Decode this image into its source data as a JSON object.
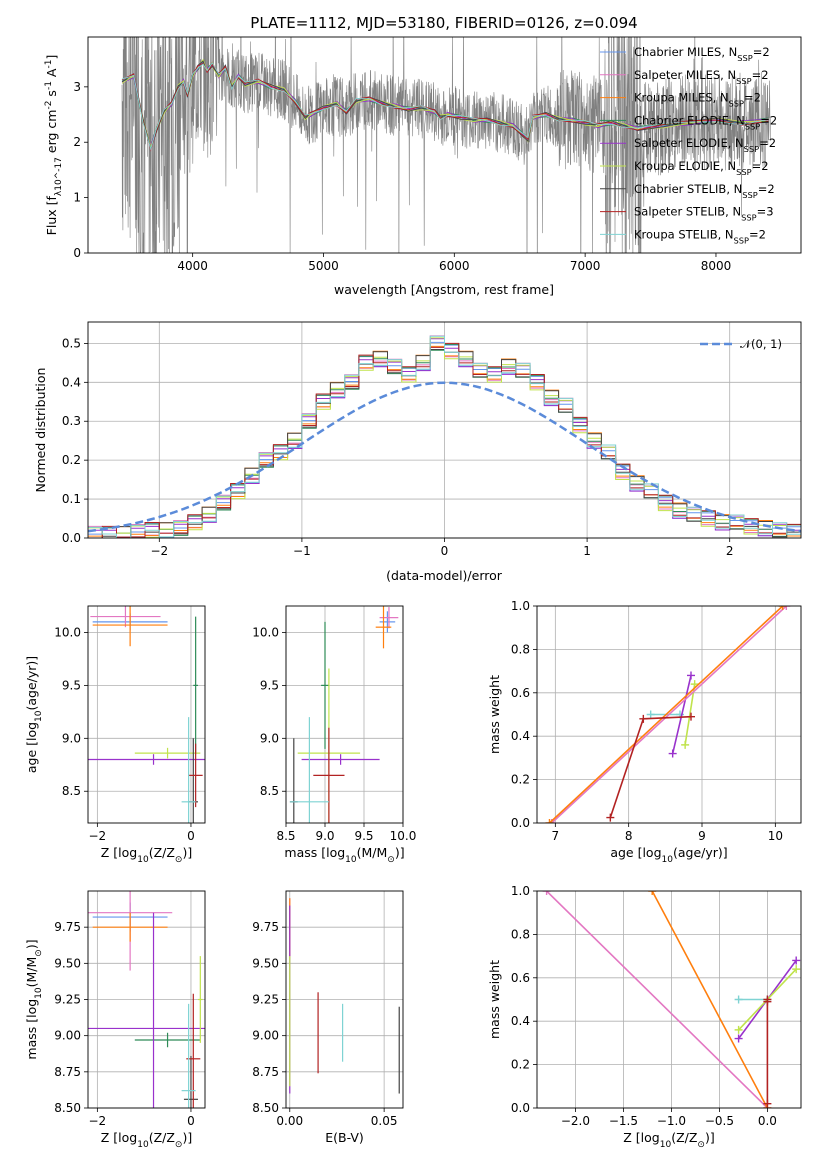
{
  "chart_data": [
    {
      "type": "line",
      "title": "PLATE=1112, MJD=53180, FIBERID=0126, z=0.094",
      "xlabel": "wavelength [Angstrom, rest frame]",
      "ylabel": "Flux [f_λ 10^-17 erg cm^-2 s^-1 A^-1]",
      "xlim": [
        3200,
        8650
      ],
      "ylim": [
        0,
        3.9
      ],
      "xticks": [
        4000,
        5000,
        6000,
        7000,
        8000
      ],
      "yticks": [
        0,
        1,
        2,
        3
      ],
      "grid": false,
      "legend_position": "right",
      "data_color": "#808080",
      "series": [
        {
          "name": "Chabrier MILES, N_SSP=2",
          "color": "#6495ed"
        },
        {
          "name": "Salpeter MILES, N_SSP=2",
          "color": "#e377c2"
        },
        {
          "name": "Kroupa MILES, N_SSP=2",
          "color": "#ff7f0e"
        },
        {
          "name": "Chabrier ELODIE, N_SSP=2",
          "color": "#2e8b57"
        },
        {
          "name": "Salpeter ELODIE, N_SSP=2",
          "color": "#9932cc"
        },
        {
          "name": "Kroupa ELODIE, N_SSP=2",
          "color": "#c0e34c"
        },
        {
          "name": "Chabrier STELIB, N_SSP=2",
          "color": "#444444"
        },
        {
          "name": "Salpeter STELIB, N_SSP=3",
          "color": "#b22222"
        },
        {
          "name": "Kroupa STELIB, N_SSP=2",
          "color": "#7fd3d3"
        }
      ],
      "model_x": [
        3460,
        3550,
        3620,
        3680,
        3720,
        3780,
        3840,
        3890,
        3930,
        3960,
        4000,
        4040,
        4080,
        4110,
        4150,
        4200,
        4250,
        4300,
        4350,
        4400,
        4500,
        4600,
        4700,
        4780,
        4861,
        4900,
        5000,
        5100,
        5175,
        5250,
        5350,
        5450,
        5550,
        5650,
        5750,
        5850,
        5893,
        5950,
        6050,
        6150,
        6250,
        6350,
        6450,
        6563,
        6600,
        6700,
        6800,
        6900,
        7000,
        7100,
        7200,
        7300,
        7400,
        7600,
        7800,
        8000,
        8200,
        8400
      ],
      "model_y": [
        3.1,
        3.2,
        2.4,
        1.9,
        2.2,
        2.55,
        2.7,
        3.0,
        3.1,
        2.85,
        3.2,
        3.35,
        3.45,
        3.3,
        3.4,
        3.2,
        3.35,
        3.0,
        3.2,
        3.05,
        3.1,
        3.0,
        2.95,
        2.75,
        2.45,
        2.5,
        2.62,
        2.7,
        2.55,
        2.75,
        2.78,
        2.7,
        2.65,
        2.6,
        2.62,
        2.55,
        2.45,
        2.5,
        2.45,
        2.4,
        2.4,
        2.35,
        2.3,
        2.05,
        2.45,
        2.5,
        2.42,
        2.4,
        2.35,
        2.3,
        2.35,
        2.3,
        2.25,
        2.3,
        2.35,
        2.4,
        2.35,
        2.4
      ]
    },
    {
      "type": "line",
      "xlabel": "(data-model)/error",
      "ylabel": "Normed distribution",
      "xlim": [
        -2.5,
        2.5
      ],
      "ylim": [
        0,
        0.555
      ],
      "xticks": [
        -2,
        -1,
        0,
        1,
        2
      ],
      "yticks": [
        0.0,
        0.1,
        0.2,
        0.3,
        0.4,
        0.5
      ],
      "grid": true,
      "legend": [
        "𝒩(0, 1)"
      ],
      "legend_position": "top-right",
      "bin_width": 0.1,
      "histogram_centers": [
        -2.45,
        -2.35,
        -2.25,
        -2.15,
        -2.05,
        -1.95,
        -1.85,
        -1.75,
        -1.65,
        -1.55,
        -1.45,
        -1.35,
        -1.25,
        -1.15,
        -1.05,
        -0.95,
        -0.85,
        -0.75,
        -0.65,
        -0.55,
        -0.45,
        -0.35,
        -0.25,
        -0.15,
        -0.05,
        0.05,
        0.15,
        0.25,
        0.35,
        0.45,
        0.55,
        0.65,
        0.75,
        0.85,
        0.95,
        1.05,
        1.15,
        1.25,
        1.35,
        1.45,
        1.55,
        1.65,
        1.75,
        1.85,
        1.95,
        2.05,
        2.15,
        2.25,
        2.35,
        2.45
      ],
      "histogram_values": [
        0.01,
        0.01,
        0.01,
        0.015,
        0.02,
        0.02,
        0.025,
        0.04,
        0.06,
        0.09,
        0.12,
        0.16,
        0.2,
        0.22,
        0.25,
        0.3,
        0.35,
        0.38,
        0.4,
        0.45,
        0.46,
        0.44,
        0.42,
        0.45,
        0.5,
        0.48,
        0.46,
        0.43,
        0.42,
        0.44,
        0.43,
        0.4,
        0.36,
        0.34,
        0.29,
        0.25,
        0.22,
        0.17,
        0.14,
        0.12,
        0.09,
        0.07,
        0.06,
        0.05,
        0.04,
        0.04,
        0.03,
        0.025,
        0.02,
        0.015
      ],
      "normal_curve": {
        "mean": 0,
        "sd": 1,
        "color": "#5b8bd9",
        "style": "dashed"
      }
    },
    {
      "type": "scatter",
      "xlabel": "Z [log10(Z/Z⊙)]",
      "ylabel": "age [log10(age/yr)]",
      "xlim": [
        -2.2,
        0.3
      ],
      "ylim": [
        8.2,
        10.25
      ],
      "xticks": [
        -2,
        0
      ],
      "yticks": [
        8.5,
        9.0,
        9.5,
        10.0
      ],
      "grid": true,
      "errorbar_points": [
        {
          "x": -1.3,
          "y": 10.1,
          "xerr": 0.8,
          "yerr": 0.08,
          "color": "#6495ed"
        },
        {
          "x": -1.4,
          "y": 10.15,
          "xerr": 0.75,
          "yerr": 0.1,
          "color": "#e377c2"
        },
        {
          "x": -1.3,
          "y": 10.07,
          "xerr": 0.8,
          "yerr": 0.2,
          "color": "#ff7f0e"
        },
        {
          "x": 0.1,
          "y": 9.5,
          "xerr": 0.05,
          "yerr": 0.65,
          "color": "#2e8b57"
        },
        {
          "x": -0.8,
          "y": 8.8,
          "xerr": 1.4,
          "yerr": 0.05,
          "color": "#9932cc"
        },
        {
          "x": -0.5,
          "y": 8.86,
          "xerr": 0.7,
          "yerr": 0.05,
          "color": "#c0e34c"
        },
        {
          "x": 0.05,
          "y": 8.4,
          "xerr": 0.1,
          "yerr": 0.6,
          "color": "#444444"
        },
        {
          "x": 0.1,
          "y": 8.65,
          "xerr": 0.15,
          "yerr": 0.3,
          "color": "#b22222"
        },
        {
          "x": -0.05,
          "y": 8.4,
          "xerr": 0.15,
          "yerr": 0.8,
          "color": "#7fd3d3"
        }
      ]
    },
    {
      "type": "scatter",
      "xlabel": "mass [log10(M/M⊙)]",
      "xlim": [
        8.5,
        10.0
      ],
      "ylim": [
        8.2,
        10.25
      ],
      "xticks": [
        8.5,
        9.0,
        9.5,
        10.0
      ],
      "yticks": [
        8.5,
        9.0,
        9.5,
        10.0
      ],
      "grid": true,
      "errorbar_points": [
        {
          "x": 9.8,
          "y": 10.1,
          "xerr": 0.1,
          "yerr": 0.1,
          "color": "#6495ed"
        },
        {
          "x": 9.82,
          "y": 10.14,
          "xerr": 0.12,
          "yerr": 0.1,
          "color": "#e377c2"
        },
        {
          "x": 9.75,
          "y": 10.05,
          "xerr": 0.1,
          "yerr": 0.2,
          "color": "#ff7f0e"
        },
        {
          "x": 9.0,
          "y": 9.5,
          "xerr": 0.05,
          "yerr": 0.6,
          "color": "#2e8b57"
        },
        {
          "x": 9.2,
          "y": 8.8,
          "xerr": 0.5,
          "yerr": 0.05,
          "color": "#9932cc"
        },
        {
          "x": 9.05,
          "y": 8.86,
          "xerr": 0.4,
          "yerr": 0.8,
          "color": "#c0e34c"
        },
        {
          "x": 8.6,
          "y": 8.4,
          "xerr": 0.05,
          "yerr": 0.6,
          "color": "#444444"
        },
        {
          "x": 9.05,
          "y": 8.65,
          "xerr": 0.2,
          "yerr": 0.45,
          "color": "#b22222"
        },
        {
          "x": 8.8,
          "y": 8.4,
          "xerr": 0.25,
          "yerr": 0.8,
          "color": "#7fd3d3"
        }
      ]
    },
    {
      "type": "line",
      "xlabel": "age [log10(age/yr)]",
      "ylabel": "mass weight",
      "xlim": [
        6.75,
        10.35
      ],
      "ylim": [
        0,
        1
      ],
      "xticks": [
        7,
        8,
        9,
        10
      ],
      "yticks": [
        0.0,
        0.2,
        0.4,
        0.6,
        0.8,
        1.0
      ],
      "grid": true,
      "series": [
        {
          "name": "Kroupa STELIB, N_SSP=2",
          "color": "#7fd3d3",
          "x": [
            8.3,
            8.7
          ],
          "y": [
            0.5,
            0.5
          ]
        },
        {
          "name": "Salpeter ELODIE, N_SSP=2",
          "color": "#9932cc",
          "x": [
            8.6,
            8.85
          ],
          "y": [
            0.32,
            0.68
          ]
        },
        {
          "name": "Kroupa ELODIE, N_SSP=2",
          "color": "#c0e34c",
          "x": [
            8.77,
            8.9
          ],
          "y": [
            0.36,
            0.64
          ]
        },
        {
          "name": "Salpeter MILES, N_SSP=2",
          "color": "#e377c2",
          "x": [
            6.95,
            10.15
          ],
          "y": [
            0,
            1
          ]
        },
        {
          "name": "Kroupa MILES, N_SSP=2",
          "color": "#ff7f0e",
          "x": [
            6.92,
            10.1
          ],
          "y": [
            0,
            1
          ]
        },
        {
          "name": "Salpeter STELIB, N_SSP=3",
          "color": "#b22222",
          "x": [
            7.75,
            8.2,
            8.85
          ],
          "y": [
            0.025,
            0.48,
            0.49
          ]
        }
      ]
    },
    {
      "type": "scatter",
      "xlabel": "Z [log10(Z/Z⊙)]",
      "ylabel": "mass [log10(M/M⊙)]",
      "xlim": [
        -2.2,
        0.3
      ],
      "ylim": [
        8.5,
        10.0
      ],
      "xticks": [
        -2,
        0
      ],
      "yticks": [
        8.5,
        8.75,
        9.0,
        9.25,
        9.5,
        9.75
      ],
      "grid": true,
      "errorbar_points": [
        {
          "x": -1.3,
          "y": 9.82,
          "xerr": 0.8,
          "yerr": 0.1,
          "color": "#6495ed"
        },
        {
          "x": -1.3,
          "y": 9.85,
          "xerr": 0.9,
          "yerr": 0.4,
          "color": "#e377c2"
        },
        {
          "x": -1.3,
          "y": 9.75,
          "xerr": 0.8,
          "yerr": 0.1,
          "color": "#ff7f0e"
        },
        {
          "x": -0.5,
          "y": 8.97,
          "xerr": 0.7,
          "yerr": 0.05,
          "color": "#2e8b57"
        },
        {
          "x": -0.8,
          "y": 9.05,
          "xerr": 1.4,
          "yerr": 0.8,
          "color": "#9932cc"
        },
        {
          "x": 0.2,
          "y": 9.25,
          "xerr": 0.05,
          "yerr": 0.3,
          "color": "#c0e34c"
        },
        {
          "x": 0.0,
          "y": 8.56,
          "xerr": 0.15,
          "yerr": 0.3,
          "color": "#444444"
        },
        {
          "x": 0.05,
          "y": 8.84,
          "xerr": 0.15,
          "yerr": 0.45,
          "color": "#b22222"
        },
        {
          "x": -0.05,
          "y": 8.62,
          "xerr": 0.15,
          "yerr": 0.6,
          "color": "#7fd3d3"
        }
      ]
    },
    {
      "type": "scatter",
      "xlabel": "E(B-V)",
      "xlim": [
        -0.002,
        0.06
      ],
      "ylim": [
        8.5,
        10.0
      ],
      "xticks": [
        0.0,
        0.05
      ],
      "yticks": [
        8.5,
        8.75,
        9.0,
        9.25,
        9.5,
        9.75
      ],
      "grid": true,
      "errorbar_points": [
        {
          "x": 0.0,
          "y": 9.8,
          "xerr": 0,
          "yerr": 0.1,
          "color": "#6495ed"
        },
        {
          "x": 0.0,
          "y": 9.75,
          "xerr": 0,
          "yerr": 0.2,
          "color": "#e377c2"
        },
        {
          "x": 0.0,
          "y": 9.75,
          "xerr": 0,
          "yerr": 0.2,
          "color": "#ff7f0e"
        },
        {
          "x": 0.0,
          "y": 9.25,
          "xerr": 0,
          "yerr": 0.65,
          "color": "#9932cc"
        },
        {
          "x": 0.0,
          "y": 9.1,
          "xerr": 0,
          "yerr": 0.45,
          "color": "#c0e34c"
        },
        {
          "x": 0.015,
          "y": 9.02,
          "xerr": 0,
          "yerr": 0.28,
          "color": "#b22222"
        },
        {
          "x": 0.028,
          "y": 9.02,
          "xerr": 0,
          "yerr": 0.2,
          "color": "#7fd3d3"
        },
        {
          "x": 0.058,
          "y": 8.9,
          "xerr": 0,
          "yerr": 0.3,
          "color": "#444444"
        }
      ]
    },
    {
      "type": "line",
      "xlabel": "Z [log10(Z/Z⊙)]",
      "ylabel": "mass weight",
      "xlim": [
        -2.4,
        0.35
      ],
      "ylim": [
        0,
        1
      ],
      "xticks": [
        -2.0,
        -1.5,
        -1.0,
        -0.5,
        0.0
      ],
      "yticks": [
        0.0,
        0.2,
        0.4,
        0.6,
        0.8,
        1.0
      ],
      "grid": true,
      "series": [
        {
          "name": "Salpeter MILES, N_SSP=2",
          "color": "#e377c2",
          "x": [
            -2.3,
            0.0
          ],
          "y": [
            1,
            0
          ]
        },
        {
          "name": "Kroupa MILES, N_SSP=2",
          "color": "#ff7f0e",
          "x": [
            -1.2,
            0.0
          ],
          "y": [
            1,
            0
          ]
        },
        {
          "name": "Kroupa STELIB, N_SSP=2",
          "color": "#7fd3d3",
          "x": [
            -0.3,
            0.0
          ],
          "y": [
            0.5,
            0.5
          ]
        },
        {
          "name": "Salpeter ELODIE, N_SSP=2",
          "color": "#9932cc",
          "x": [
            -0.3,
            0.3
          ],
          "y": [
            0.32,
            0.68
          ]
        },
        {
          "name": "Kroupa ELODIE, N_SSP=2",
          "color": "#c0e34c",
          "x": [
            -0.3,
            0.3
          ],
          "y": [
            0.36,
            0.64
          ]
        },
        {
          "name": "Salpeter STELIB, N_SSP=3",
          "color": "#b22222",
          "x": [
            0.0,
            0.0,
            0.0
          ],
          "y": [
            0.02,
            0.49,
            0.5
          ]
        }
      ]
    }
  ]
}
